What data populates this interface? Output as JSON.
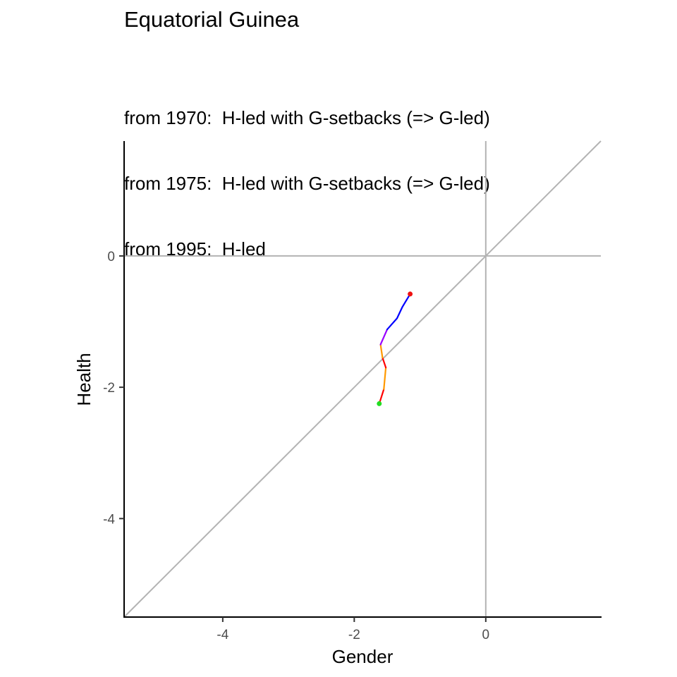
{
  "chart_data": {
    "type": "line",
    "title": "Equatorial Guinea",
    "subtitle_lines": [
      "from 1970:  H-led with G-setbacks (=> G-led)",
      "from 1975:  H-led with G-setbacks (=> G-led)",
      "from 1995:  H-led"
    ],
    "xlabel": "Gender",
    "ylabel": "Health",
    "xlim": [
      -5.5,
      1.75
    ],
    "ylim": [
      -5.5,
      1.75
    ],
    "x_ticks": [
      -4,
      -2,
      0
    ],
    "y_ticks": [
      0,
      -2,
      -4
    ],
    "x_tick_labels": [
      "-4",
      "-2",
      "0"
    ],
    "y_tick_labels": [
      "0",
      "-2",
      "-4"
    ],
    "grid": false,
    "reference_lines": [
      "x = 0",
      "y = 0",
      "y = x"
    ],
    "reference_color": "#b3b3b3",
    "start_point_color": "#22dd22",
    "end_point_color": "#ee1111",
    "segments": [
      {
        "color": "#ff0000",
        "points": [
          [
            -1.62,
            -2.25
          ],
          [
            -1.55,
            -2.03
          ]
        ]
      },
      {
        "color": "#ff9900",
        "points": [
          [
            -1.55,
            -2.03
          ],
          [
            -1.52,
            -1.7
          ]
        ]
      },
      {
        "color": "#ff0000",
        "points": [
          [
            -1.52,
            -1.7
          ],
          [
            -1.57,
            -1.55
          ]
        ]
      },
      {
        "color": "#ff9900",
        "points": [
          [
            -1.57,
            -1.55
          ],
          [
            -1.6,
            -1.35
          ]
        ]
      },
      {
        "color": "#9900ff",
        "points": [
          [
            -1.6,
            -1.35
          ],
          [
            -1.5,
            -1.12
          ]
        ]
      },
      {
        "color": "#0000ff",
        "points": [
          [
            -1.5,
            -1.12
          ],
          [
            -1.35,
            -0.95
          ],
          [
            -1.27,
            -0.78
          ],
          [
            -1.15,
            -0.58
          ]
        ]
      }
    ]
  }
}
